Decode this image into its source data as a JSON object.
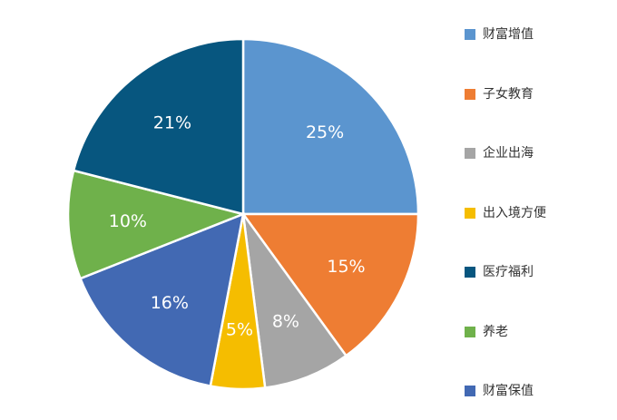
{
  "chart_data": {
    "type": "pie",
    "categories": [
      "财富增值",
      "子女教育",
      "企业出海",
      "出入境方便",
      "医疗福利",
      "养老",
      "财富保值"
    ],
    "values": [
      25,
      15,
      8,
      5,
      21,
      10,
      16
    ],
    "labels": [
      "25%",
      "15%",
      "8%",
      "5%",
      "21%",
      "10%",
      "16%"
    ],
    "slice_order": [
      0,
      1,
      2,
      3,
      6,
      5,
      4
    ],
    "colors": [
      "#5b95cf",
      "#ee7d33",
      "#a5a5a5",
      "#f5bd00",
      "#07567f",
      "#6fb14b",
      "#4269b3"
    ],
    "start_angle": "12 o'clock, clockwise",
    "legend_position": "right",
    "title": "",
    "xlabel": "",
    "ylabel": ""
  }
}
